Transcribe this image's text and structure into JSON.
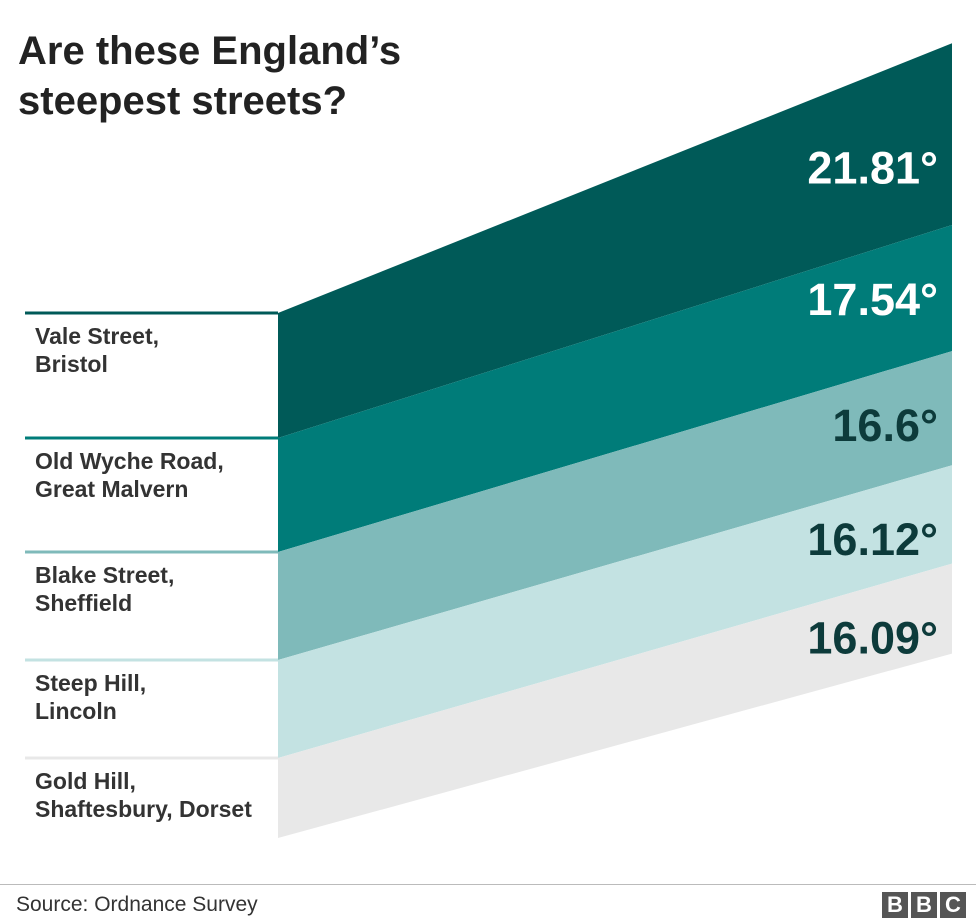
{
  "title_lines": [
    "Are these England’s",
    "steepest streets?"
  ],
  "source": "Source: Ordnance Survey",
  "logo_letters": [
    "B",
    "B",
    "C"
  ],
  "chart_data": {
    "type": "bar",
    "title": "Are these England’s steepest streets?",
    "unit": "°",
    "categories": [
      [
        "Vale Street,",
        "Bristol"
      ],
      [
        "Old Wyche Road,",
        "Great Malvern"
      ],
      [
        "Blake Street,",
        "Sheffield"
      ],
      [
        "Steep Hill,",
        "Lincoln"
      ],
      [
        "Gold Hill,",
        "Shaftesbury, Dorset"
      ]
    ],
    "values": [
      21.81,
      17.54,
      16.6,
      16.12,
      16.09
    ],
    "value_labels": [
      "21.81°",
      "17.54°",
      "16.6°",
      "16.12°",
      "16.09°"
    ],
    "colors": [
      "#005a58",
      "#007c79",
      "#7fbaba",
      "#c3e2e2",
      "#e8e8e8"
    ],
    "line_colors": [
      "#005a58",
      "#007c79",
      "#7fbaba",
      "#c3e2e2",
      "#e8e8e8"
    ],
    "value_colors": [
      "#ffffff",
      "#ffffff",
      "#0d3b3b",
      "#0d3b3b",
      "#0d3b3b"
    ]
  }
}
